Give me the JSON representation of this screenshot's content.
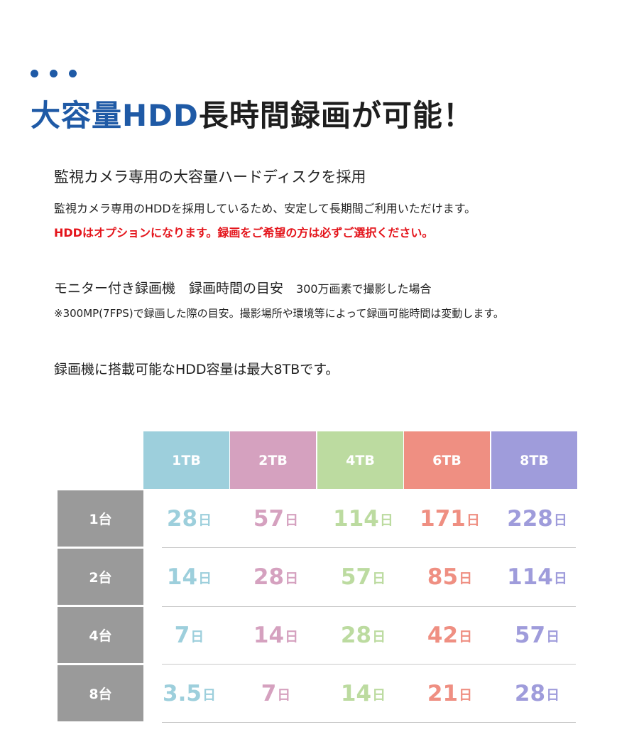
{
  "title": {
    "accent": "大容量HDD",
    "rest": "長時間録画が可能！"
  },
  "section1": {
    "heading": "監視カメラ専用の大容量ハードディスクを採用",
    "body": "監視カメラ専用のHDDを採用しているため、安定して長期間ご利用いただけます。",
    "notice": "HDDはオプションになります。録画をご希望の方は必ずご選択ください。"
  },
  "section2": {
    "heading": "モニター付き録画機　録画時間の目安",
    "subheading": "300万画素で撮影した場合",
    "note": "※300MP(7FPS)で録画した際の目安。撮影場所や環境等によって録画可能時間は変動します。"
  },
  "section3": {
    "heading": "録画機に搭載可能なHDD容量は最大8TBです。"
  },
  "table": {
    "columns": [
      {
        "label": "1TB",
        "color": "#9dcfdc"
      },
      {
        "label": "2TB",
        "color": "#d5a1bf"
      },
      {
        "label": "4TB",
        "color": "#bcdba0"
      },
      {
        "label": "6TB",
        "color": "#ef8f82"
      },
      {
        "label": "8TB",
        "color": "#9f9cdb"
      }
    ],
    "rows": [
      {
        "label": "1台",
        "values": [
          "28",
          "57",
          "114",
          "171",
          "228"
        ]
      },
      {
        "label": "2台",
        "values": [
          "14",
          "28",
          "57",
          "85",
          "114"
        ]
      },
      {
        "label": "4台",
        "values": [
          "7",
          "14",
          "28",
          "42",
          "57"
        ]
      },
      {
        "label": "8台",
        "values": [
          "3.5",
          "7",
          "14",
          "21",
          "28"
        ]
      }
    ],
    "unit": "日",
    "row_header_color": "#9a9a9a"
  }
}
